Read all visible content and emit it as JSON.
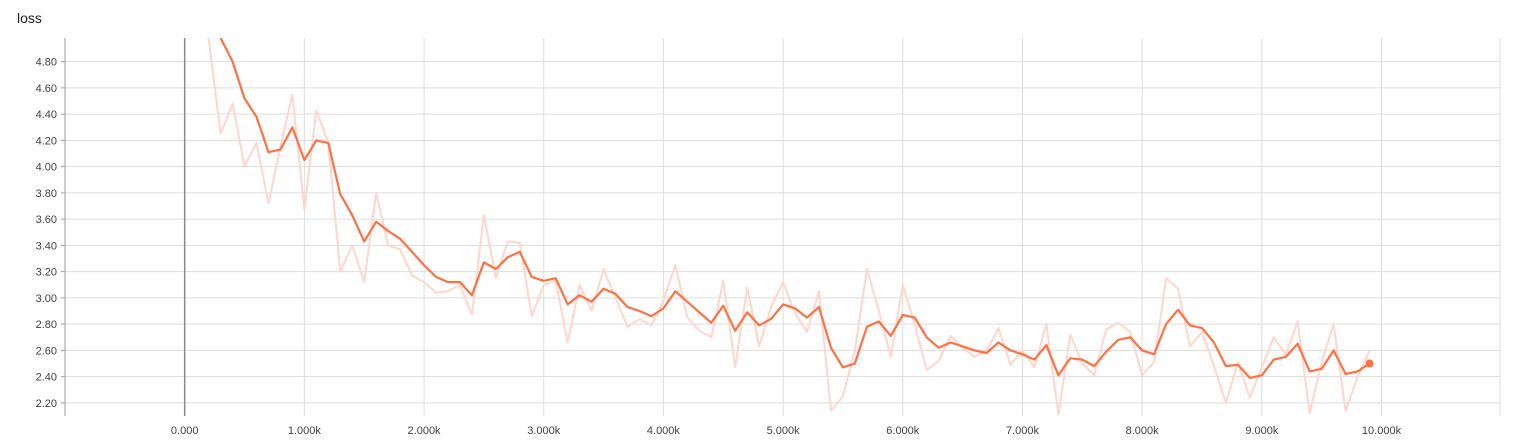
{
  "chart_data": {
    "type": "line",
    "title": "loss",
    "xlabel": "",
    "ylabel": "",
    "xlim": [
      -1000,
      10990
    ],
    "ylim": [
      2.1,
      4.98
    ],
    "x_ticks": [
      0,
      1000,
      2000,
      3000,
      4000,
      5000,
      6000,
      7000,
      8000,
      9000,
      10000
    ],
    "x_tick_labels": [
      "0.000",
      "1.000k",
      "2.000k",
      "3.000k",
      "4.000k",
      "5.000k",
      "6.000k",
      "7.000k",
      "8.000k",
      "9.000k",
      "10.000k"
    ],
    "y_ticks": [
      2.2,
      2.4,
      2.6,
      2.8,
      3.0,
      3.2,
      3.4,
      3.6,
      3.8,
      4.0,
      4.2,
      4.4,
      4.6,
      4.8
    ],
    "y_tick_labels": [
      "2.20",
      "2.40",
      "2.60",
      "2.80",
      "3.00",
      "3.20",
      "3.40",
      "3.60",
      "3.80",
      "4.00",
      "4.20",
      "4.40",
      "4.60",
      "4.80"
    ],
    "grid": true,
    "colors": {
      "smoothed": "#ff7043",
      "raw": "#ffd6cc",
      "axis_zero": "#8a8a8a",
      "grid": "#dddddd"
    },
    "series": [
      {
        "style": "raw",
        "x": [
          200,
          300,
          400,
          500,
          600,
          700,
          800,
          900,
          1000,
          1100,
          1200,
          1300,
          1400,
          1500,
          1600,
          1700,
          1800,
          1900,
          2000,
          2100,
          2200,
          2300,
          2400,
          2500,
          2600,
          2700,
          2800,
          2900,
          3000,
          3100,
          3200,
          3300,
          3400,
          3500,
          3600,
          3700,
          3800,
          3900,
          4000,
          4100,
          4200,
          4300,
          4400,
          4500,
          4600,
          4700,
          4800,
          4900,
          5000,
          5100,
          5200,
          5300,
          5400,
          5500,
          5600,
          5700,
          5800,
          5900,
          6000,
          6100,
          6200,
          6300,
          6400,
          6500,
          6600,
          6700,
          6800,
          6900,
          7000,
          7100,
          7200,
          7300,
          7400,
          7500,
          7600,
          7700,
          7800,
          7900,
          8000,
          8100,
          8200,
          8300,
          8400,
          8500,
          8600,
          8700,
          8800,
          8900,
          9000,
          9100,
          9200,
          9300,
          9400,
          9500,
          9600,
          9700,
          9800,
          9900
        ],
        "y": [
          4.98,
          4.25,
          4.48,
          4.0,
          4.18,
          3.72,
          4.15,
          4.55,
          3.67,
          4.43,
          4.18,
          3.2,
          3.4,
          3.12,
          3.8,
          3.4,
          3.37,
          3.17,
          3.12,
          3.04,
          3.05,
          3.1,
          2.87,
          3.63,
          3.15,
          3.43,
          3.42,
          2.86,
          3.1,
          3.13,
          2.66,
          3.1,
          2.9,
          3.22,
          3.0,
          2.78,
          2.84,
          2.79,
          2.98,
          3.25,
          2.85,
          2.75,
          2.7,
          3.13,
          2.47,
          3.08,
          2.63,
          2.93,
          3.12,
          2.88,
          2.74,
          3.05,
          2.14,
          2.25,
          2.6,
          3.22,
          2.9,
          2.55,
          3.1,
          2.8,
          2.45,
          2.52,
          2.71,
          2.62,
          2.55,
          2.6,
          2.77,
          2.49,
          2.6,
          2.47,
          2.8,
          2.11,
          2.72,
          2.5,
          2.41,
          2.76,
          2.81,
          2.74,
          2.41,
          2.51,
          3.15,
          3.07,
          2.63,
          2.74,
          2.48,
          2.2,
          2.51,
          2.24,
          2.47,
          2.7,
          2.57,
          2.82,
          2.12,
          2.51,
          2.8,
          2.14,
          2.4,
          2.6
        ]
      },
      {
        "style": "smoothed",
        "x": [
          300,
          400,
          500,
          600,
          700,
          800,
          900,
          1000,
          1100,
          1200,
          1300,
          1400,
          1500,
          1600,
          1700,
          1800,
          1900,
          2000,
          2100,
          2200,
          2300,
          2400,
          2500,
          2600,
          2700,
          2800,
          2900,
          3000,
          3100,
          3200,
          3300,
          3400,
          3500,
          3600,
          3700,
          3800,
          3900,
          4000,
          4100,
          4200,
          4300,
          4400,
          4500,
          4600,
          4700,
          4800,
          4900,
          5000,
          5100,
          5200,
          5300,
          5400,
          5500,
          5600,
          5700,
          5800,
          5900,
          6000,
          6100,
          6200,
          6300,
          6400,
          6500,
          6600,
          6700,
          6800,
          6900,
          7000,
          7100,
          7200,
          7300,
          7400,
          7500,
          7600,
          7700,
          7800,
          7900,
          8000,
          8100,
          8200,
          8300,
          8400,
          8500,
          8600,
          8700,
          8800,
          8900,
          9000,
          9100,
          9200,
          9300,
          9400,
          9500,
          9600,
          9700,
          9800,
          9900
        ],
        "y": [
          4.98,
          4.8,
          4.52,
          4.38,
          4.11,
          4.13,
          4.3,
          4.05,
          4.2,
          4.18,
          3.79,
          3.63,
          3.43,
          3.58,
          3.51,
          3.45,
          3.35,
          3.25,
          3.16,
          3.12,
          3.12,
          3.02,
          3.27,
          3.22,
          3.31,
          3.35,
          3.16,
          3.13,
          3.15,
          2.95,
          3.02,
          2.97,
          3.07,
          3.03,
          2.93,
          2.9,
          2.86,
          2.92,
          3.05,
          2.97,
          2.89,
          2.81,
          2.94,
          2.75,
          2.89,
          2.79,
          2.84,
          2.95,
          2.92,
          2.85,
          2.93,
          2.62,
          2.47,
          2.5,
          2.78,
          2.82,
          2.71,
          2.87,
          2.85,
          2.7,
          2.62,
          2.66,
          2.63,
          2.6,
          2.58,
          2.66,
          2.6,
          2.57,
          2.53,
          2.64,
          2.41,
          2.54,
          2.53,
          2.48,
          2.59,
          2.68,
          2.7,
          2.6,
          2.57,
          2.8,
          2.91,
          2.79,
          2.77,
          2.66,
          2.48,
          2.49,
          2.39,
          2.41,
          2.53,
          2.55,
          2.65,
          2.44,
          2.46,
          2.6,
          2.42,
          2.44,
          2.5
        ]
      }
    ]
  }
}
